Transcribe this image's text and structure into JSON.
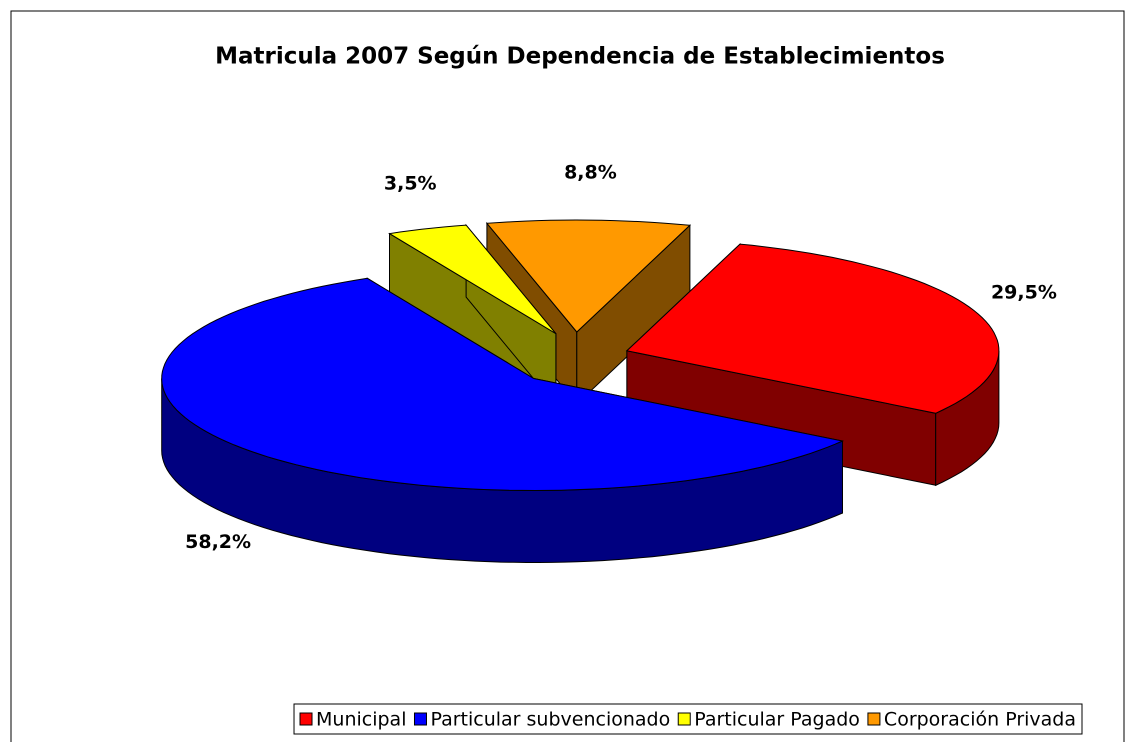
{
  "chart_data": {
    "type": "pie3d",
    "title": "Matricula 2007 Según Dependencia de Establecimientos",
    "categories": [
      "Municipal",
      "Particular subvencionado",
      "Particular Pagado",
      "Corporación Privada"
    ],
    "values": [
      29.5,
      58.2,
      3.5,
      8.8
    ],
    "value_labels": [
      "29,5%",
      "58,2%",
      "3,5%",
      "8,8%"
    ],
    "colors": [
      "#ff0000",
      "#0000ff",
      "#ffff00",
      "#ff9900"
    ],
    "legend": "bottom"
  }
}
